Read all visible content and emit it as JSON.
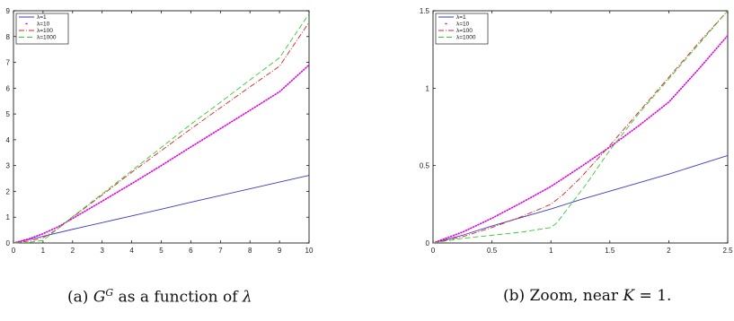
{
  "chart_data": [
    {
      "type": "line",
      "xlim": [
        0,
        10
      ],
      "ylim": [
        0,
        9
      ],
      "xticks": [
        0,
        1,
        2,
        3,
        4,
        5,
        6,
        7,
        8,
        9,
        10
      ],
      "yticks": [
        0,
        1,
        2,
        3,
        4,
        5,
        6,
        7,
        8,
        9
      ],
      "legend_position": "top-left",
      "grid": false,
      "series": [
        {
          "name": "λ=1",
          "color": "#3a3acc",
          "style": "solid",
          "x": [
            0,
            0.5,
            1,
            2,
            3,
            4,
            5,
            6,
            7,
            8,
            9,
            10
          ],
          "y": [
            0,
            0.13,
            0.26,
            0.53,
            0.79,
            1.05,
            1.31,
            1.58,
            1.84,
            2.1,
            2.36,
            2.62
          ]
        },
        {
          "name": "λ=10",
          "color": "#e000e0",
          "style": "dotted",
          "x": [
            0,
            0.5,
            1,
            1.5,
            2,
            3,
            4,
            5,
            6,
            7,
            8,
            9,
            10
          ],
          "y": [
            0,
            0.15,
            0.36,
            0.62,
            0.95,
            1.62,
            2.3,
            3.0,
            3.72,
            4.43,
            5.14,
            5.86,
            6.9
          ]
        },
        {
          "name": "λ=100",
          "color": "#e02020",
          "style": "dashdot",
          "x": [
            0,
            0.5,
            1,
            1.5,
            2,
            3,
            4,
            5,
            6,
            7,
            8,
            9,
            10
          ],
          "y": [
            0,
            0.07,
            0.2,
            0.55,
            1.0,
            1.86,
            2.74,
            3.58,
            4.42,
            5.24,
            6.05,
            6.85,
            8.55
          ]
        },
        {
          "name": "λ=1000",
          "color": "#33cc33",
          "style": "dashed",
          "x": [
            0,
            0.5,
            1,
            1.5,
            2,
            3,
            4,
            5,
            6,
            7,
            8,
            9,
            10
          ],
          "y": [
            0,
            0.02,
            0.1,
            0.55,
            1.02,
            1.9,
            2.8,
            3.7,
            4.6,
            5.45,
            6.32,
            7.18,
            8.88
          ]
        }
      ]
    },
    {
      "type": "line",
      "xlim": [
        0,
        2.5
      ],
      "ylim": [
        0,
        1.5
      ],
      "xticks": [
        0,
        0.5,
        1,
        1.5,
        2,
        2.5
      ],
      "yticks": [
        0,
        0.5,
        1,
        1.5
      ],
      "legend_position": "top-left",
      "grid": false,
      "series": [
        {
          "name": "λ=1",
          "color": "#3a3acc",
          "style": "solid",
          "x": [
            0,
            0.25,
            0.5,
            0.75,
            1,
            1.25,
            1.5,
            1.75,
            2,
            2.25,
            2.5
          ],
          "y": [
            0,
            0.05,
            0.11,
            0.165,
            0.22,
            0.28,
            0.335,
            0.39,
            0.445,
            0.505,
            0.565
          ]
        },
        {
          "name": "λ=10",
          "color": "#e000e0",
          "style": "dotted",
          "x": [
            0,
            0.25,
            0.5,
            0.75,
            1,
            1.25,
            1.5,
            1.75,
            2,
            2.25,
            2.5
          ],
          "y": [
            0,
            0.07,
            0.16,
            0.26,
            0.365,
            0.49,
            0.62,
            0.76,
            0.91,
            1.12,
            1.34
          ]
        },
        {
          "name": "λ=100",
          "color": "#e02020",
          "style": "dashdot",
          "x": [
            0,
            0.25,
            0.5,
            0.75,
            1,
            1.1,
            1.25,
            1.5,
            1.75,
            2,
            2.25,
            2.5
          ],
          "y": [
            0,
            0.04,
            0.1,
            0.17,
            0.25,
            0.31,
            0.42,
            0.63,
            0.85,
            1.07,
            1.29,
            1.5
          ]
        },
        {
          "name": "λ=1000",
          "color": "#33cc33",
          "style": "dashed",
          "x": [
            0,
            0.25,
            0.5,
            0.75,
            1,
            1.05,
            1.1,
            1.2,
            1.3,
            1.5,
            1.75,
            2,
            2.25,
            2.5
          ],
          "y": [
            0,
            0.03,
            0.05,
            0.07,
            0.1,
            0.13,
            0.18,
            0.28,
            0.38,
            0.6,
            0.84,
            1.06,
            1.28,
            1.5
          ]
        }
      ]
    }
  ],
  "captions": {
    "a_prefix": "(a) ",
    "a_symbol": "G",
    "a_sup": "G",
    "a_rest": " as a function of ",
    "a_lambda": "λ",
    "b_prefix": "(b) Zoom, near ",
    "b_var": "K",
    "b_rest": " = 1."
  }
}
